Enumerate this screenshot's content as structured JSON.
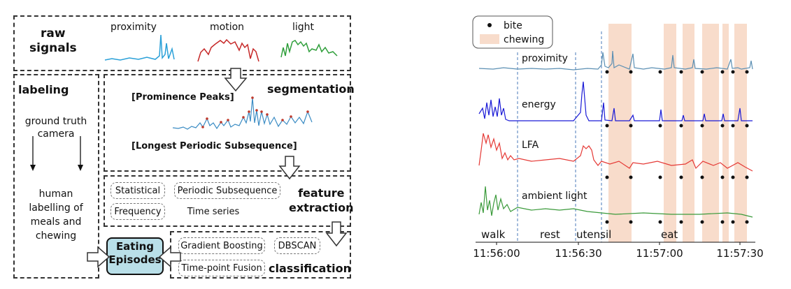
{
  "diagram": {
    "raw_signals": {
      "title_line1": "raw",
      "title_line2": "signals",
      "signals": [
        "proximity",
        "motion",
        "light"
      ]
    },
    "labeling": {
      "title": "labeling",
      "item1": [
        "ground truth",
        "camera"
      ],
      "item2": [
        "human",
        "labelling of",
        "meals and",
        "chewing"
      ]
    },
    "segmentation": {
      "title": "segmentation",
      "method1": "[Prominence Peaks]",
      "method2": "[Longest Periodic Subsequence]"
    },
    "feature_extraction": {
      "title_line1": "feature",
      "title_line2": "extraction",
      "features": [
        "Statistical",
        "Periodic Subsequence",
        "Frequency",
        "Time series"
      ]
    },
    "classification": {
      "title": "classification",
      "methods": [
        "Gradient Boosting",
        "DBSCAN",
        "Time-point Fusion"
      ]
    },
    "output": {
      "line1": "Eating",
      "line2": "Episodes"
    }
  },
  "plot": {
    "legend": {
      "bite": "bite",
      "chewing": "chewing"
    },
    "signals": [
      "proximity",
      "energy",
      "LFA",
      "ambient light"
    ],
    "phases": [
      "walk",
      "rest",
      "utensil",
      "eat"
    ],
    "x_ticks": [
      "11:56:00",
      "11:56:30",
      "11:57:00",
      "11:57:30"
    ],
    "colors": {
      "proximity": "#5b8fb3",
      "energy": "#1a1ad6",
      "LFA": "#e53935",
      "ambient light": "#3a9a3a",
      "chewing": "#f8dccb",
      "divider": "#4a78b8"
    }
  }
}
